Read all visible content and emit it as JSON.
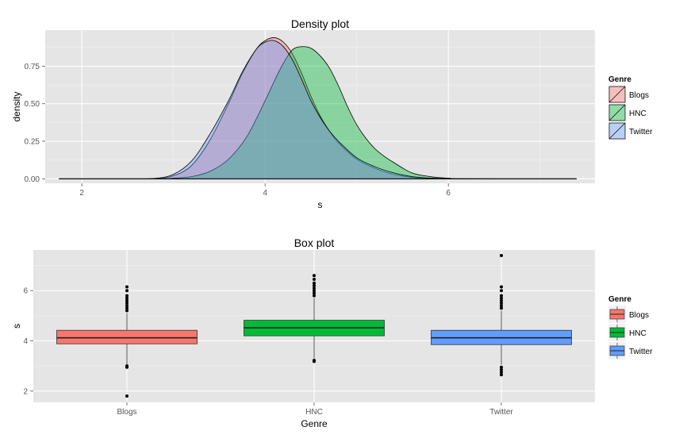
{
  "chart_data": [
    {
      "type": "area",
      "title": "Density plot",
      "xlabel": "s",
      "ylabel": "density",
      "xlim": [
        1.6,
        7.6
      ],
      "ylim": [
        -0.03,
        0.99
      ],
      "x_ticks": [
        2,
        4,
        6
      ],
      "x_tick_labels": [
        "2",
        "4",
        "6"
      ],
      "y_ticks": [
        0,
        0.25,
        0.5,
        0.75
      ],
      "y_tick_labels": [
        "0.00",
        "0.25",
        "0.50",
        "0.75"
      ],
      "grid": true,
      "legend": {
        "title": "Genre",
        "position": "right"
      },
      "series": [
        {
          "name": "Blogs",
          "color": "#F8766D",
          "x": [
            1.75,
            2.5,
            2.8,
            3.0,
            3.2,
            3.4,
            3.6,
            3.75,
            3.9,
            4.0,
            4.1,
            4.2,
            4.3,
            4.4,
            4.5,
            4.6,
            4.7,
            4.8,
            5.0,
            5.2,
            5.4,
            5.6,
            5.8,
            6.0,
            6.2,
            7.4
          ],
          "y": [
            0,
            0,
            0.002,
            0.02,
            0.09,
            0.26,
            0.5,
            0.7,
            0.86,
            0.92,
            0.94,
            0.91,
            0.83,
            0.7,
            0.55,
            0.42,
            0.32,
            0.24,
            0.13,
            0.07,
            0.03,
            0.01,
            0.004,
            0.001,
            0,
            0
          ]
        },
        {
          "name": "HNC",
          "color": "#00BA38",
          "x": [
            1.75,
            2.8,
            3.0,
            3.2,
            3.4,
            3.6,
            3.8,
            4.0,
            4.1,
            4.2,
            4.3,
            4.4,
            4.5,
            4.6,
            4.7,
            4.8,
            4.9,
            5.0,
            5.1,
            5.2,
            5.3,
            5.4,
            5.6,
            5.8,
            6.0,
            6.2,
            7.4
          ],
          "y": [
            0,
            0,
            0.004,
            0.015,
            0.05,
            0.13,
            0.28,
            0.52,
            0.65,
            0.77,
            0.86,
            0.88,
            0.87,
            0.82,
            0.74,
            0.62,
            0.48,
            0.36,
            0.27,
            0.2,
            0.15,
            0.11,
            0.04,
            0.015,
            0.004,
            0.001,
            0
          ]
        },
        {
          "name": "Twitter",
          "color": "#619CFF",
          "x": [
            1.75,
            2.5,
            2.8,
            3.0,
            3.2,
            3.4,
            3.6,
            3.75,
            3.9,
            4.0,
            4.1,
            4.2,
            4.3,
            4.4,
            4.5,
            4.6,
            4.7,
            4.8,
            5.0,
            5.2,
            5.4,
            5.6,
            5.8,
            6.0,
            6.2,
            7.4
          ],
          "y": [
            0,
            0,
            0.003,
            0.03,
            0.12,
            0.3,
            0.52,
            0.71,
            0.86,
            0.91,
            0.92,
            0.88,
            0.79,
            0.66,
            0.52,
            0.41,
            0.32,
            0.25,
            0.14,
            0.08,
            0.04,
            0.015,
            0.005,
            0.001,
            0,
            0
          ]
        }
      ]
    },
    {
      "type": "box",
      "title": "Box plot",
      "xlabel": "Genre",
      "ylabel": "s",
      "categories": [
        "Blogs",
        "HNC",
        "Twitter"
      ],
      "ylim": [
        1.55,
        7.62
      ],
      "y_ticks": [
        2,
        4,
        6
      ],
      "y_tick_labels": [
        "2",
        "4",
        "6"
      ],
      "grid": true,
      "legend": {
        "title": "Genre",
        "position": "right"
      },
      "series": [
        {
          "name": "Blogs",
          "color": "#F8766D",
          "whisker_low": 3.05,
          "q1": 3.88,
          "median": 4.12,
          "q3": 4.42,
          "whisker_high": 5.1,
          "outliers_high": [
            5.2,
            5.3,
            5.4,
            5.5,
            5.6,
            5.7,
            5.8,
            6.0,
            6.15
          ],
          "outliers_low": [
            2.95,
            3.0,
            1.8
          ]
        },
        {
          "name": "HNC",
          "color": "#00BA38",
          "whisker_low": 3.3,
          "q1": 4.2,
          "median": 4.52,
          "q3": 4.82,
          "whisker_high": 5.7,
          "outliers_high": [
            5.8,
            5.9,
            6.0,
            6.1,
            6.2,
            6.3,
            6.45,
            6.6
          ],
          "outliers_low": [
            3.18,
            3.22
          ]
        },
        {
          "name": "Twitter",
          "color": "#619CFF",
          "whisker_low": 3.05,
          "q1": 3.85,
          "median": 4.12,
          "q3": 4.42,
          "whisker_high": 5.2,
          "outliers_high": [
            5.3,
            5.4,
            5.5,
            5.6,
            5.7,
            5.8,
            6.0,
            6.15,
            7.4
          ],
          "outliers_low": [
            2.95,
            2.85,
            2.75,
            2.65
          ]
        }
      ]
    }
  ]
}
